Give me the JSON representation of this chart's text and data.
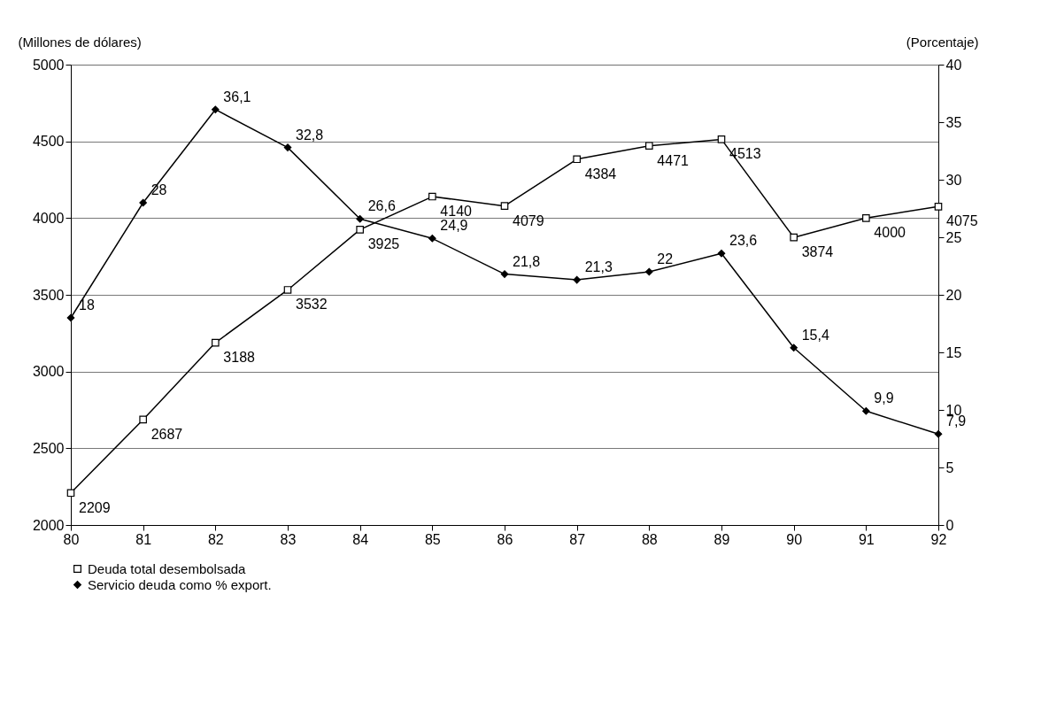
{
  "chart_data": {
    "type": "line",
    "categories": [
      "80",
      "81",
      "82",
      "83",
      "84",
      "85",
      "86",
      "87",
      "88",
      "89",
      "90",
      "91",
      "92"
    ],
    "ylabel": "(Millones de dólares)",
    "y2label": "(Porcentaje)",
    "ylim": [
      2000,
      5000
    ],
    "yticks": [
      2000,
      2500,
      3000,
      3500,
      4000,
      4500,
      5000
    ],
    "y2lim": [
      0,
      40
    ],
    "y2ticks": [
      0,
      5,
      10,
      15,
      20,
      25,
      30,
      35,
      40
    ],
    "grid": "y",
    "legend": "bottom",
    "series": [
      {
        "name": "Deuda total desembolsada",
        "color": "#000000",
        "marker": "square",
        "values": [
          2209,
          2687,
          3188,
          3532,
          3925,
          4140,
          4079,
          4384,
          4471,
          4513,
          3874,
          4000,
          4075
        ],
        "value_labels": [
          "2209",
          "2687",
          "3188",
          "3532",
          "3925",
          "4140",
          "4079",
          "4384",
          "4471",
          "4513",
          "3874",
          "4000",
          "4075"
        ]
      },
      {
        "name": "Servicio deuda como % export.",
        "color": "#000000",
        "marker": "diamond",
        "axis": "y2",
        "values": [
          18,
          28,
          36.1,
          32.8,
          26.6,
          24.9,
          21.8,
          21.3,
          22,
          23.6,
          15.4,
          9.9,
          7.9
        ],
        "value_labels": [
          "18",
          "28",
          "36,1",
          "32,8",
          "26,6",
          "24,9",
          "21,8",
          "21,3",
          "22",
          "23,6",
          "15,4",
          "9,9",
          "7,9"
        ]
      }
    ]
  }
}
